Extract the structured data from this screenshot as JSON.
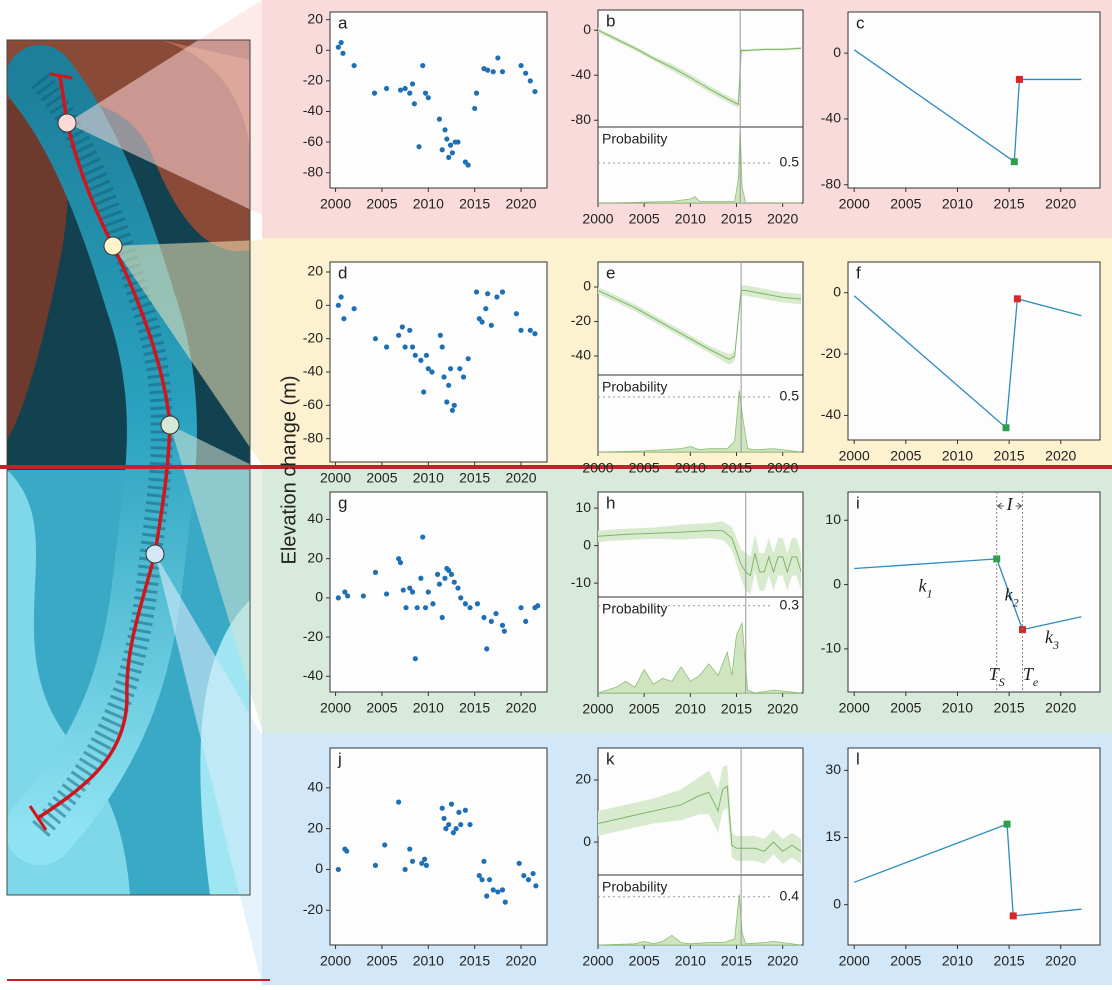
{
  "y_axis_label": "Elevation change (m)",
  "chart_data": [
    {
      "type": "scatter",
      "title": "a",
      "color": "#1f6fb4",
      "x": [
        2000.3,
        2000.6,
        2000.8,
        2002,
        2004.2,
        2005.5,
        2007,
        2007.5,
        2008,
        2008.3,
        2008.5,
        2009,
        2009.4,
        2009.7,
        2010,
        2011.2,
        2011.5,
        2011.8,
        2012,
        2012.2,
        2012.4,
        2012.6,
        2012.9,
        2013.2,
        2014,
        2014.3,
        2015,
        2015.2,
        2016,
        2016.4,
        2017,
        2017.5,
        2018,
        2020,
        2020.5,
        2021,
        2021.5
      ],
      "values": [
        2,
        5,
        -2,
        -10,
        -28,
        -25,
        -26,
        -25,
        -28,
        -22,
        -35,
        -63,
        -10,
        -28,
        -31,
        -45,
        -65,
        -52,
        -58,
        -70,
        -62,
        -67,
        -60,
        -60,
        -73,
        -75,
        -38,
        -28,
        -12,
        -13,
        -14,
        -5,
        -14,
        -10,
        -15,
        -20,
        -27
      ],
      "xlim": [
        1999.4,
        2022.8
      ],
      "xticks": [
        2000,
        2005,
        2010,
        2015,
        2020
      ],
      "ylim": [
        -90,
        25
      ],
      "yticks": [
        20,
        0,
        -20,
        -40,
        -60,
        -80
      ]
    },
    {
      "type": "line",
      "title": "b",
      "color": "#7fb56a",
      "band_color": "#d9ebcf",
      "x": [
        2000,
        2002,
        2004,
        2006,
        2008,
        2010,
        2012,
        2014,
        2015.2,
        2015.5,
        2016,
        2018,
        2020,
        2022
      ],
      "values": [
        0,
        -8,
        -16,
        -25,
        -33,
        -42,
        -52,
        -61,
        -66,
        -18,
        -18,
        -17,
        -17,
        -16
      ],
      "error": [
        2,
        2,
        2,
        2,
        3,
        3,
        3,
        3,
        3,
        2,
        1,
        1,
        1,
        1
      ],
      "changepoint": 2015.4,
      "xlim": [
        2000,
        2022.2
      ],
      "xticks": [
        2000,
        2005,
        2010,
        2015,
        2020
      ],
      "ylim": [
        -86,
        18
      ],
      "yticks": [
        0,
        -40,
        -80
      ],
      "probability": {
        "label": "Probability",
        "x": [
          2000,
          2005,
          2008,
          2010,
          2010.5,
          2011,
          2014.8,
          2015.2,
          2015.4,
          2015.6,
          2016,
          2022
        ],
        "values": [
          0,
          0.01,
          0.02,
          0.05,
          0.08,
          0.02,
          0.02,
          0.3,
          0.92,
          0.2,
          0,
          0
        ],
        "ylim": [
          0,
          0.95
        ],
        "threshold": 0.5
      }
    },
    {
      "type": "line",
      "title": "c",
      "color": "#2b8cbe",
      "marker_colors": [
        "#2e9e4f",
        "#d62728"
      ],
      "x": [
        2000,
        2015.5,
        2016,
        2022
      ],
      "values": [
        2,
        -66,
        -16,
        -16
      ],
      "xlim": [
        1999.4,
        2023.8
      ],
      "xticks": [
        2000,
        2005,
        2010,
        2015,
        2020
      ],
      "ylim": [
        -82,
        25
      ],
      "yticks": [
        0,
        -40,
        -80
      ]
    },
    {
      "type": "scatter",
      "title": "d",
      "color": "#1f6fb4",
      "x": [
        2000.3,
        2000.6,
        2000.9,
        2002,
        2004.3,
        2005.5,
        2006.8,
        2007.2,
        2007.5,
        2008,
        2008.3,
        2008.6,
        2009.2,
        2009.5,
        2009.8,
        2010,
        2010.4,
        2011.3,
        2011.5,
        2011.7,
        2012,
        2012.2,
        2012.4,
        2012.6,
        2012.8,
        2013.4,
        2013.8,
        2014.3,
        2015.2,
        2015.5,
        2015.8,
        2016.2,
        2016.4,
        2016.8,
        2017.4,
        2018,
        2019.5,
        2020,
        2021,
        2021.5
      ],
      "values": [
        0,
        5,
        -8,
        -2,
        -20,
        -25,
        -18,
        -13,
        -25,
        -15,
        -25,
        -30,
        -33,
        -52,
        -30,
        -38,
        -40,
        -18,
        -25,
        -43,
        -58,
        -48,
        -38,
        -63,
        -60,
        -38,
        -43,
        -32,
        8,
        -8,
        -10,
        -2,
        7,
        -12,
        5,
        8,
        -5,
        -15,
        -15,
        -17
      ],
      "xlim": [
        1999.4,
        2022.8
      ],
      "xticks": [
        2000,
        2005,
        2010,
        2015,
        2020
      ],
      "ylim": [
        -94,
        26
      ],
      "yticks": [
        20,
        0,
        -20,
        -40,
        -60,
        -80
      ]
    },
    {
      "type": "line",
      "title": "e",
      "color": "#7fb56a",
      "band_color": "#d9ebcf",
      "x": [
        2000,
        2004,
        2008,
        2012,
        2014.2,
        2014.8,
        2015.5,
        2016,
        2018,
        2020,
        2022
      ],
      "values": [
        -2,
        -12,
        -24,
        -36,
        -42,
        -40,
        -2,
        -2,
        -4,
        -6,
        -7
      ],
      "error": [
        2,
        2,
        2,
        2,
        3,
        3,
        3,
        3,
        3,
        3,
        3
      ],
      "changepoint": 2015.5,
      "xlim": [
        2000,
        2022.2
      ],
      "xticks": [
        2000,
        2005,
        2010,
        2015,
        2020
      ],
      "ylim": [
        -51,
        14.5
      ],
      "yticks": [
        0,
        -20,
        -40
      ],
      "probability": {
        "label": "Probability",
        "x": [
          2000,
          2005,
          2009,
          2010,
          2011,
          2012,
          2014,
          2014.8,
          2015.3,
          2015.7,
          2016.2,
          2017,
          2019,
          2022
        ],
        "values": [
          0,
          0.01,
          0.03,
          0.05,
          0.02,
          0.03,
          0.03,
          0.1,
          0.56,
          0.3,
          0.03,
          0.02,
          0.03,
          0
        ],
        "ylim": [
          0,
          0.7
        ],
        "threshold": 0.5
      }
    },
    {
      "type": "line",
      "title": "f",
      "color": "#2b8cbe",
      "marker_colors": [
        "#2e9e4f",
        "#d62728"
      ],
      "x": [
        2000,
        2014.7,
        2015.8,
        2022
      ],
      "values": [
        -1,
        -44,
        -2,
        -7.5
      ],
      "xlim": [
        1999.4,
        2023.8
      ],
      "xticks": [
        2000,
        2005,
        2010,
        2015,
        2020
      ],
      "ylim": [
        -48,
        10
      ],
      "yticks": [
        0,
        -20,
        -40
      ]
    },
    {
      "type": "scatter",
      "title": "g",
      "color": "#1f6fb4",
      "x": [
        2000.3,
        2001,
        2001.3,
        2003,
        2004.3,
        2005.5,
        2006.8,
        2007,
        2007.3,
        2007.6,
        2008,
        2008.3,
        2008.6,
        2008.8,
        2009.2,
        2009.4,
        2009.7,
        2010,
        2010.5,
        2011,
        2011.2,
        2011.5,
        2011.8,
        2012,
        2012.2,
        2012.5,
        2012.8,
        2013.2,
        2013.5,
        2014,
        2014.5,
        2015.3,
        2016,
        2016.3,
        2016.8,
        2017.3,
        2018,
        2018.2,
        2020,
        2020.5,
        2021.5,
        2021.8
      ],
      "values": [
        0,
        3,
        1,
        1,
        13,
        2,
        20,
        18,
        4,
        -5,
        5,
        3,
        -31,
        -5,
        10,
        31,
        -5,
        3,
        -3,
        12,
        7,
        -10,
        10,
        15,
        14,
        12,
        8,
        5,
        0,
        -3,
        -5,
        -3,
        -10,
        -26,
        -12,
        -8,
        -14,
        -17,
        -5,
        -12,
        -5,
        -4
      ],
      "xlim": [
        1999.4,
        2022.8
      ],
      "xticks": [
        2000,
        2005,
        2010,
        2015,
        2020
      ],
      "ylim": [
        -48,
        54
      ],
      "yticks": [
        40,
        20,
        0,
        -20,
        -40
      ]
    },
    {
      "type": "line",
      "title": "h",
      "color": "#7fb56a",
      "band_color": "#d9ebcf",
      "x": [
        2000,
        2003,
        2006,
        2009,
        2012,
        2013.5,
        2014.5,
        2015.5,
        2016,
        2016.5,
        2017,
        2017.5,
        2018,
        2018.5,
        2019,
        2019.5,
        2020,
        2020.5,
        2021,
        2021.5,
        2022
      ],
      "values": [
        2.5,
        3,
        3.3,
        3.6,
        4,
        4,
        2,
        -5,
        -7,
        -8,
        -2,
        -7,
        -7,
        -3,
        -7,
        -3,
        -3,
        -7,
        -3,
        -3,
        -7
      ],
      "error": [
        1.5,
        1.5,
        1.5,
        2,
        2,
        2.5,
        3,
        4,
        5,
        5,
        5,
        5,
        5,
        5,
        5,
        5,
        5,
        5,
        5,
        5,
        5
      ],
      "changepoint": 2016,
      "xlim": [
        2000,
        2022.2
      ],
      "xticks": [
        2000,
        2005,
        2010,
        2015,
        2020
      ],
      "ylim": [
        -13.7,
        14.3
      ],
      "yticks": [
        10,
        0,
        -10
      ],
      "probability": {
        "label": "Probability",
        "x": [
          2000,
          2002,
          2003,
          2004,
          2005,
          2006,
          2007,
          2008,
          2009,
          2010,
          2011,
          2012,
          2013,
          2014,
          2014.5,
          2015,
          2015.6,
          2016.2,
          2017,
          2019,
          2022
        ],
        "values": [
          0,
          0.02,
          0.04,
          0.02,
          0.08,
          0.03,
          0.05,
          0.04,
          0.09,
          0.04,
          0.06,
          0.1,
          0.06,
          0.14,
          0.06,
          0.2,
          0.24,
          0.01,
          0,
          0.01,
          0
        ],
        "ylim": [
          0,
          0.33
        ],
        "threshold": 0.3
      }
    },
    {
      "type": "line",
      "title": "i",
      "color": "#2b8cbe",
      "marker_colors": [
        "#2e9e4f",
        "#d62728"
      ],
      "x": [
        2000,
        2013.8,
        2016.3,
        2022
      ],
      "values": [
        2.5,
        4,
        -7,
        -5
      ],
      "xlim": [
        1999.4,
        2023.8
      ],
      "xticks": [
        2000,
        2005,
        2010,
        2015,
        2020
      ],
      "ylim": [
        -16.7,
        14.4
      ],
      "yticks": [
        10,
        0,
        -10
      ],
      "annotations": [
        {
          "text": "k",
          "sub": "1"
        },
        {
          "text": "k",
          "sub": "2"
        },
        {
          "text": "k",
          "sub": "3"
        },
        {
          "text": "T",
          "sub": "S"
        },
        {
          "text": "T",
          "sub": "e"
        },
        {
          "text": "I"
        }
      ]
    },
    {
      "type": "scatter",
      "title": "j",
      "color": "#1f6fb4",
      "x": [
        2000.3,
        2001,
        2001.2,
        2004.3,
        2005.3,
        2006.8,
        2007.5,
        2008,
        2008.3,
        2009.3,
        2009.6,
        2009.8,
        2011.5,
        2011.7,
        2011.9,
        2012.2,
        2012.5,
        2012.7,
        2013,
        2013.3,
        2013.5,
        2014,
        2014.5,
        2015.5,
        2015.8,
        2016,
        2016.3,
        2016.6,
        2017,
        2017.5,
        2018,
        2018.3,
        2019.8,
        2020.3,
        2020.8,
        2021.3,
        2021.6
      ],
      "values": [
        0,
        10,
        9,
        2,
        12,
        33,
        0,
        10,
        4,
        3,
        5,
        2,
        30,
        25,
        20,
        22,
        32,
        18,
        20,
        28,
        22,
        29,
        22,
        -3,
        -5,
        4,
        -13,
        -5,
        -10,
        -11,
        -10,
        -16,
        3,
        -3,
        -5,
        -2,
        -8
      ],
      "xlim": [
        1999.4,
        2022.8
      ],
      "xticks": [
        2000,
        2005,
        2010,
        2015,
        2020
      ],
      "ylim": [
        -37,
        59.5
      ],
      "yticks": [
        40,
        20,
        0,
        -20
      ]
    },
    {
      "type": "line",
      "title": "k",
      "color": "#7fb56a",
      "band_color": "#d9ebcf",
      "x": [
        2000,
        2003,
        2006,
        2009,
        2011,
        2012,
        2013,
        2013.5,
        2014,
        2014.5,
        2015,
        2016,
        2017,
        2018,
        2019,
        2020,
        2021,
        2022
      ],
      "values": [
        6,
        8,
        10,
        12,
        15,
        16,
        10,
        17,
        18,
        -1,
        -2,
        -2,
        -2,
        -3,
        0,
        -3,
        -1,
        -3
      ],
      "error": [
        4,
        4,
        4,
        5,
        6,
        7,
        7,
        7,
        7,
        4,
        4,
        4,
        4,
        4,
        4,
        4,
        4,
        4
      ],
      "changepoint": 2015.5,
      "xlim": [
        2000,
        2022.2
      ],
      "xticks": [
        2000,
        2005,
        2010,
        2015,
        2020
      ],
      "ylim": [
        -10.6,
        30.3
      ],
      "yticks": [
        20,
        0
      ],
      "probability": {
        "label": "Probability",
        "x": [
          2000,
          2004,
          2005,
          2006,
          2007,
          2008,
          2009,
          2010,
          2012,
          2013.5,
          2014.8,
          2015.3,
          2015.6,
          2016,
          2018,
          2019,
          2022
        ],
        "values": [
          0,
          0.01,
          0.03,
          0.01,
          0.03,
          0.08,
          0.02,
          0.01,
          0.02,
          0.02,
          0.05,
          0.42,
          0.1,
          0.01,
          0.02,
          0.03,
          0
        ],
        "ylim": [
          0,
          0.58
        ],
        "threshold": 0.4
      }
    },
    {
      "type": "line",
      "title": "l",
      "color": "#2b8cbe",
      "marker_colors": [
        "#2e9e4f",
        "#d62728"
      ],
      "x": [
        2000,
        2014.8,
        2015.4,
        2022
      ],
      "values": [
        5,
        18,
        -2.5,
        -1
      ],
      "xlim": [
        1999.4,
        2023.8
      ],
      "xticks": [
        2000,
        2005,
        2010,
        2015,
        2020
      ],
      "ylim": [
        -9,
        35
      ],
      "yticks": [
        30,
        15,
        0
      ]
    }
  ]
}
